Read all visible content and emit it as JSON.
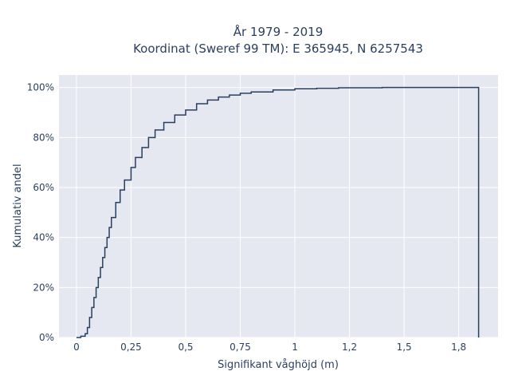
{
  "chart_data": {
    "type": "line",
    "subtype": "empirical-cdf-step",
    "title_lines": [
      "År 1979 - 2019",
      "Koordinat (Sweref 99 TM): E 365945, N 6257543"
    ],
    "xlabel": "Signifikant våghöjd (m)",
    "ylabel": "Kumulativ andel",
    "xlim": [
      -0.08,
      1.93
    ],
    "ylim": [
      0,
      1.05
    ],
    "x_ticks": [
      0,
      0.25,
      0.5,
      0.75,
      1,
      1.25,
      1.5,
      1.75
    ],
    "x_tick_labels": [
      "0",
      "0,25",
      "0,5",
      "0,75",
      "1",
      "1,2",
      "1,5",
      "1,8"
    ],
    "y_ticks": [
      0,
      0.2,
      0.4,
      0.6,
      0.8,
      1.0
    ],
    "y_tick_labels": [
      "0%",
      "20%",
      "40%",
      "60%",
      "80%",
      "100%"
    ],
    "grid": true,
    "background_color": "#e5e8f1",
    "grid_color": "#ffffff",
    "line_color": "#2a3f5f",
    "series": [
      {
        "x": [
          0,
          0.02,
          0.04,
          0.05,
          0.06,
          0.07,
          0.08,
          0.09,
          0.1,
          0.11,
          0.12,
          0.13,
          0.14,
          0.15,
          0.16,
          0.18,
          0.2,
          0.22,
          0.25,
          0.27,
          0.3,
          0.33,
          0.36,
          0.4,
          0.45,
          0.5,
          0.55,
          0.6,
          0.65,
          0.7,
          0.75,
          0.8,
          0.9,
          1.0,
          1.1,
          1.2,
          1.4,
          1.6,
          1.84,
          1.841
        ],
        "y": [
          0,
          0.005,
          0.015,
          0.04,
          0.08,
          0.12,
          0.16,
          0.2,
          0.24,
          0.28,
          0.32,
          0.36,
          0.4,
          0.44,
          0.48,
          0.54,
          0.59,
          0.63,
          0.68,
          0.72,
          0.76,
          0.8,
          0.83,
          0.86,
          0.89,
          0.91,
          0.935,
          0.95,
          0.962,
          0.97,
          0.977,
          0.982,
          0.99,
          0.995,
          0.997,
          0.999,
          1.0,
          1.0,
          1.0,
          0.0
        ]
      }
    ]
  }
}
